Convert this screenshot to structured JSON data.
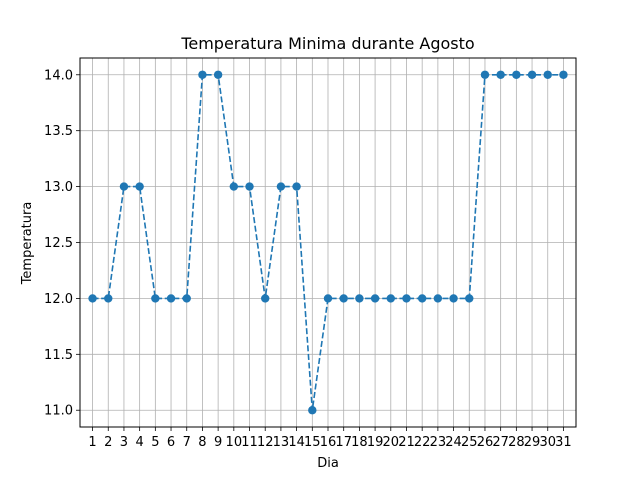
{
  "chart_data": {
    "type": "line",
    "title": "Temperatura Minima durante Agosto",
    "xlabel": "Dia",
    "ylabel": "Temperatura",
    "x": [
      1,
      2,
      3,
      4,
      5,
      6,
      7,
      8,
      9,
      10,
      11,
      12,
      13,
      14,
      15,
      16,
      17,
      18,
      19,
      20,
      21,
      22,
      23,
      24,
      25,
      26,
      27,
      28,
      29,
      30,
      31
    ],
    "series": [
      {
        "values": [
          12,
          12,
          13,
          13,
          12,
          12,
          12,
          14,
          14,
          13,
          13,
          12,
          13,
          13,
          11,
          12,
          12,
          12,
          12,
          12,
          12,
          12,
          12,
          12,
          12,
          14,
          14,
          14,
          14,
          14,
          14
        ],
        "color": "#1f77b4",
        "line_style": "dashed",
        "marker": "circle"
      }
    ],
    "xlim": [
      0.2,
      31.8
    ],
    "ylim": [
      10.85,
      14.15
    ],
    "yticks": [
      "11.0",
      "11.5",
      "12.0",
      "12.5",
      "13.0",
      "13.5",
      "14.0"
    ],
    "grid": true
  }
}
